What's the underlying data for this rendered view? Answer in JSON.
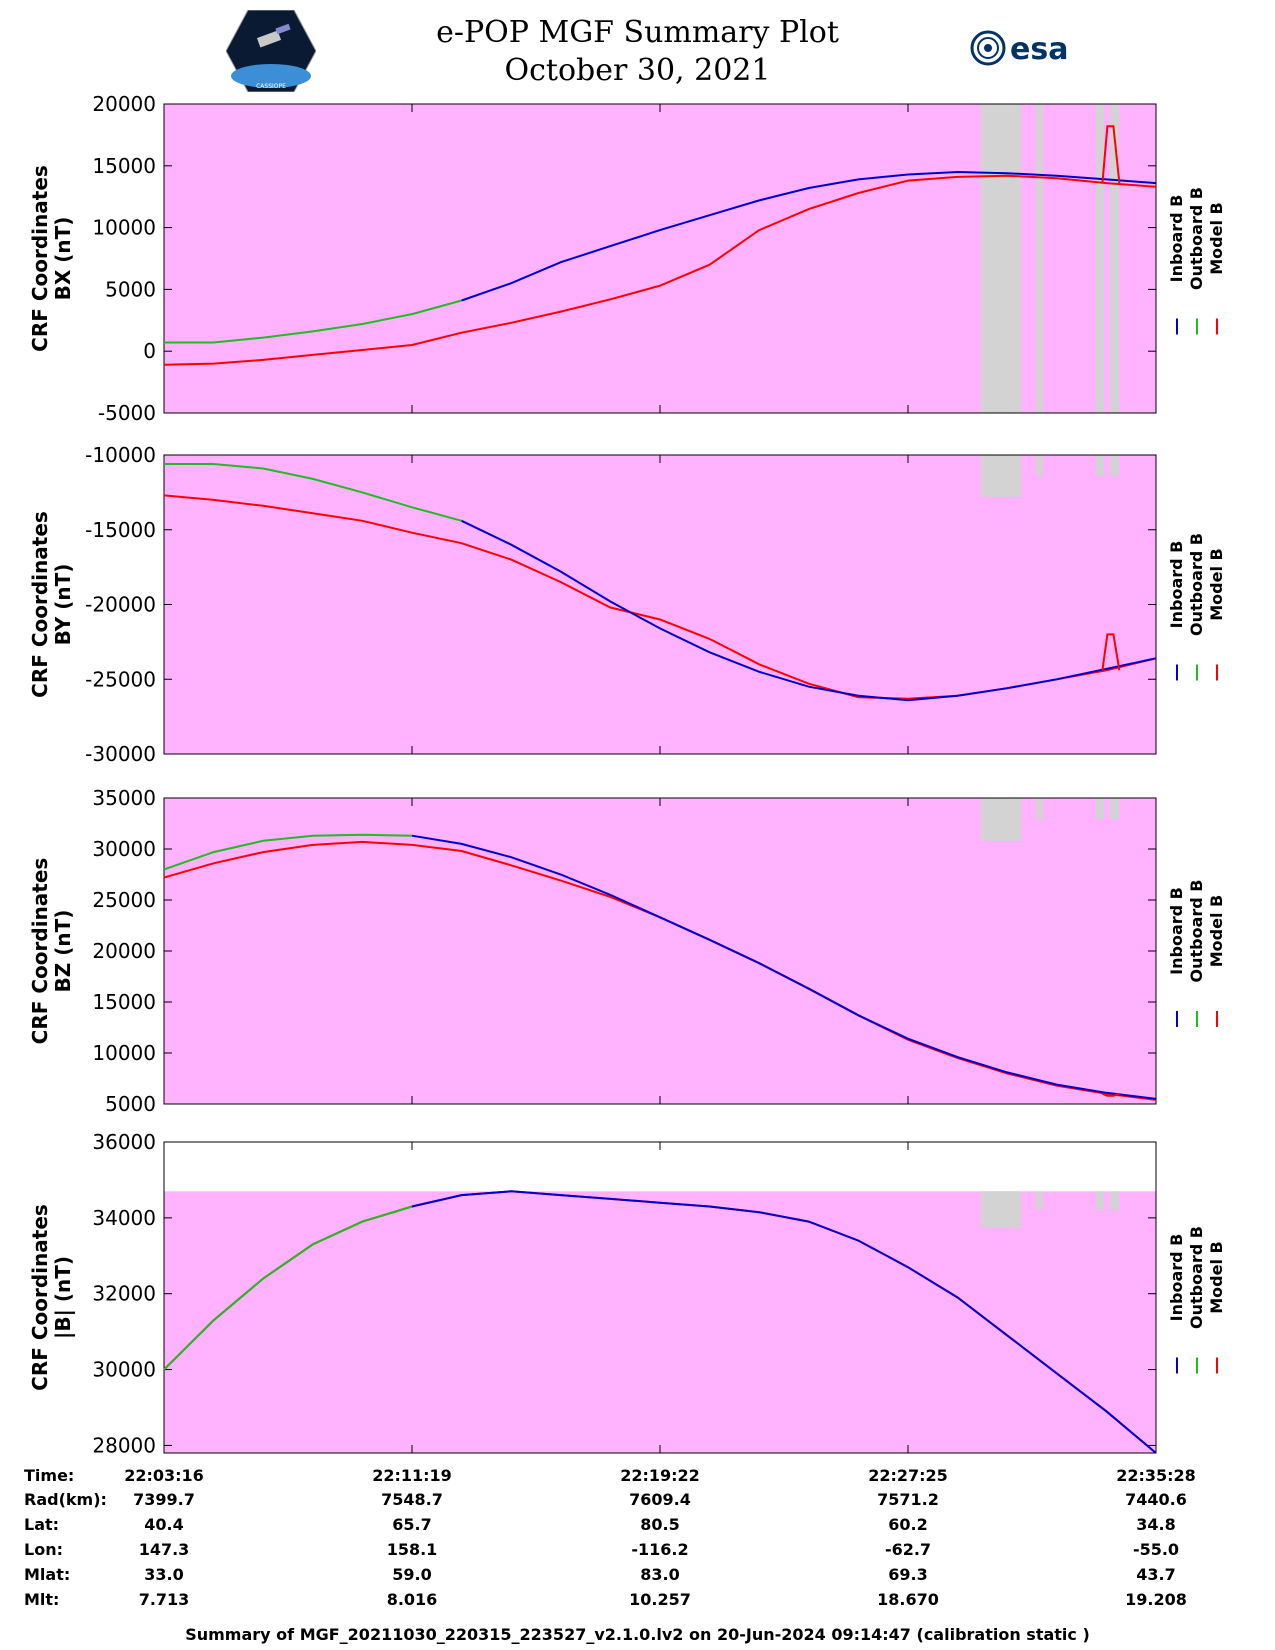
{
  "header": {
    "title_line1": "e-POP MGF Summary Plot",
    "title_line2": "October 30, 2021",
    "logo_left": "CASSIOPE",
    "logo_right": "esa"
  },
  "colors": {
    "background": "#ffb3ff",
    "gap": "#d3d3d3",
    "inboard": "#0000cc",
    "outboard": "#22bb22",
    "model": "#ff0000"
  },
  "legend": [
    "Inboard B",
    "Outboard B",
    "Model B"
  ],
  "chart_data": [
    {
      "type": "line",
      "ylabel_line1": "CRF Coordinates",
      "ylabel_line2": "BX (nT)",
      "ylim": [
        -5000,
        20000
      ],
      "yticks": [
        -5000,
        0,
        5000,
        10000,
        15000,
        20000
      ],
      "x": [
        0,
        0.05,
        0.1,
        0.15,
        0.2,
        0.25,
        0.3,
        0.35,
        0.4,
        0.45,
        0.5,
        0.55,
        0.6,
        0.65,
        0.7,
        0.75,
        0.8,
        0.85,
        0.9,
        0.95,
        1.0
      ],
      "series": [
        {
          "name": "Model B",
          "values": [
            -1100,
            -1000,
            -700,
            -300,
            100,
            500,
            1500,
            2300,
            3200,
            4200,
            5300,
            7000,
            9800,
            11500,
            12800,
            13800,
            14100,
            14200,
            14000,
            13600,
            13300
          ]
        },
        {
          "name": "Outboard B",
          "values": [
            700,
            700,
            1100,
            1600,
            2200,
            3000,
            4100,
            null,
            null,
            null,
            null,
            null,
            null,
            null,
            null,
            null,
            null,
            null,
            null,
            null,
            null
          ]
        },
        {
          "name": "Inboard B",
          "values": [
            null,
            null,
            null,
            null,
            null,
            null,
            4100,
            5500,
            7200,
            8500,
            9800,
            11000,
            12200,
            13200,
            13900,
            14300,
            14500,
            14400,
            14200,
            13900,
            13600
          ]
        }
      ],
      "spike": {
        "series": "Model B",
        "x_center": 0.955,
        "peak": 18200
      }
    },
    {
      "type": "line",
      "ylabel_line1": "CRF Coordinates",
      "ylabel_line2": "BY (nT)",
      "ylim": [
        -30000,
        -10000
      ],
      "yticks": [
        -30000,
        -25000,
        -20000,
        -15000,
        -10000
      ],
      "x": [
        0,
        0.05,
        0.1,
        0.15,
        0.2,
        0.25,
        0.3,
        0.35,
        0.4,
        0.45,
        0.5,
        0.55,
        0.6,
        0.65,
        0.7,
        0.75,
        0.8,
        0.85,
        0.9,
        0.95,
        1.0
      ],
      "series": [
        {
          "name": "Model B",
          "values": [
            -12700,
            -13000,
            -13400,
            -13900,
            -14400,
            -15200,
            -15900,
            -17000,
            -18500,
            -20200,
            -21000,
            -22300,
            -24000,
            -25300,
            -26200,
            -26300,
            -26100,
            -25600,
            -25000,
            -24400,
            -23600
          ]
        },
        {
          "name": "Outboard B",
          "values": [
            -10600,
            -10600,
            -10900,
            -11600,
            -12500,
            -13500,
            -14400,
            null,
            null,
            null,
            null,
            null,
            null,
            null,
            null,
            null,
            null,
            null,
            null,
            null,
            null
          ]
        },
        {
          "name": "Inboard B",
          "values": [
            null,
            null,
            null,
            null,
            null,
            null,
            -14400,
            -16000,
            -17800,
            -19800,
            -21600,
            -23200,
            -24500,
            -25500,
            -26100,
            -26400,
            -26100,
            -25600,
            -25000,
            -24300,
            -23600
          ]
        }
      ],
      "spike": {
        "series": "Model B",
        "x_center": 0.955,
        "peak": -22000
      }
    },
    {
      "type": "line",
      "ylabel_line1": "CRF Coordinates",
      "ylabel_line2": "BZ (nT)",
      "ylim": [
        5000,
        35000
      ],
      "yticks": [
        5000,
        10000,
        15000,
        20000,
        25000,
        30000,
        35000
      ],
      "x": [
        0,
        0.05,
        0.1,
        0.15,
        0.2,
        0.25,
        0.3,
        0.35,
        0.4,
        0.45,
        0.5,
        0.55,
        0.6,
        0.65,
        0.7,
        0.75,
        0.8,
        0.85,
        0.9,
        0.95,
        1.0
      ],
      "series": [
        {
          "name": "Model B",
          "values": [
            27200,
            28600,
            29700,
            30400,
            30700,
            30400,
            29800,
            28400,
            26900,
            25300,
            23300,
            21100,
            18800,
            16300,
            13700,
            11300,
            9500,
            8000,
            6800,
            6000,
            5400
          ]
        },
        {
          "name": "Outboard B",
          "values": [
            28000,
            29700,
            30800,
            31300,
            31400,
            31300,
            null,
            null,
            null,
            null,
            null,
            null,
            null,
            null,
            null,
            null,
            null,
            null,
            null,
            null,
            null
          ]
        },
        {
          "name": "Inboard B",
          "values": [
            null,
            null,
            null,
            null,
            null,
            31300,
            30500,
            29200,
            27500,
            25500,
            23300,
            21100,
            18800,
            16300,
            13700,
            11400,
            9600,
            8100,
            6900,
            6100,
            5500
          ]
        }
      ],
      "spike": {
        "series": "Model B",
        "x_center": 0.955,
        "peak": 5800
      }
    },
    {
      "type": "line",
      "ylabel_line1": "CRF Coordinates",
      "ylabel_line2": "|B| (nT)",
      "ylim": [
        27800,
        36000
      ],
      "yticks": [
        28000,
        30000,
        32000,
        34000,
        36000
      ],
      "data_top": 34700,
      "x": [
        0,
        0.05,
        0.1,
        0.15,
        0.2,
        0.25,
        0.3,
        0.35,
        0.4,
        0.45,
        0.5,
        0.55,
        0.6,
        0.65,
        0.7,
        0.75,
        0.8,
        0.85,
        0.9,
        0.95,
        1.0
      ],
      "series": [
        {
          "name": "Model B",
          "values": [
            30000,
            31300,
            32400,
            33300,
            33900,
            34300,
            34600,
            34700,
            34600,
            34500,
            34400,
            34300,
            34150,
            33900,
            33400,
            32700,
            31900,
            30900,
            29900,
            28900,
            27800
          ]
        },
        {
          "name": "Outboard B",
          "values": [
            30000,
            31300,
            32400,
            33300,
            33900,
            34300,
            null,
            null,
            null,
            null,
            null,
            null,
            null,
            null,
            null,
            null,
            null,
            null,
            null,
            null,
            null
          ]
        },
        {
          "name": "Inboard B",
          "values": [
            null,
            null,
            null,
            null,
            null,
            34300,
            34600,
            34700,
            34600,
            34500,
            34400,
            34300,
            34150,
            33900,
            33400,
            32700,
            31900,
            30900,
            29900,
            28900,
            27800
          ]
        }
      ]
    }
  ],
  "ephemeris": {
    "labels": [
      "Time:",
      "Rad(km):",
      "Lat:",
      "Lon:",
      "Mlat:",
      "Mlt:"
    ],
    "columns": [
      [
        "22:03:16",
        "7399.7",
        "40.4",
        "147.3",
        "33.0",
        "7.713"
      ],
      [
        "22:11:19",
        "7548.7",
        "65.7",
        "158.1",
        "59.0",
        "8.016"
      ],
      [
        "22:19:22",
        "7609.4",
        "80.5",
        "-116.2",
        "83.0",
        "10.257"
      ],
      [
        "22:27:25",
        "7571.2",
        "60.2",
        "-62.7",
        "69.3",
        "18.670"
      ],
      [
        "22:35:28",
        "7440.6",
        "34.8",
        "-55.0",
        "43.7",
        "19.208"
      ]
    ]
  },
  "footer": "Summary of MGF_20211030_220315_223527_v2.1.0.lv2 on 20-Jun-2024 09:14:47 (calibration static )"
}
